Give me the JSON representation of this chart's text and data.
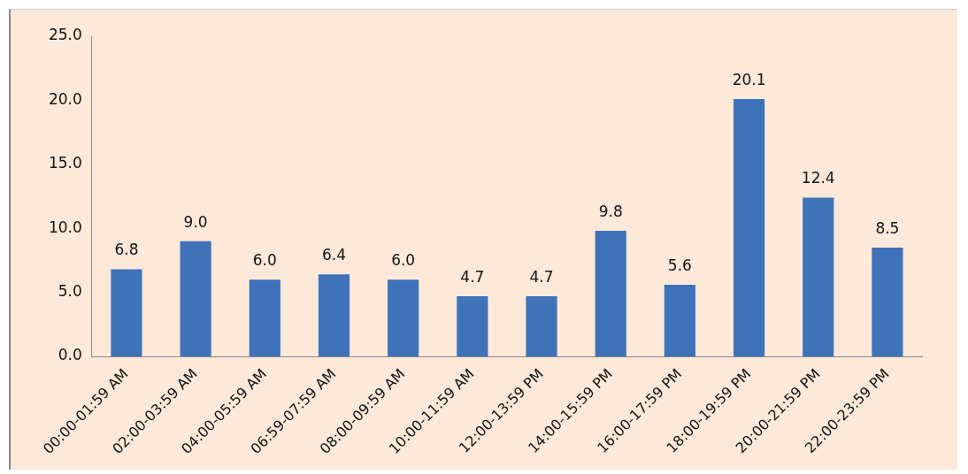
{
  "chart_data": {
    "type": "bar",
    "categories": [
      "00:00-01:59 AM",
      "02:00-03:59 AM",
      "04:00-05:59 AM",
      "06:59-07:59 AM",
      "08:00-09:59 AM",
      "10:00-11:59 AM",
      "12:00-13:59 PM",
      "14:00-15:59 PM",
      "16:00-17:59 PM",
      "18:00-19:59 PM",
      "20:00-21:59 PM",
      "22:00-23:59 PM"
    ],
    "values": [
      6.8,
      9.0,
      6.0,
      6.4,
      6.0,
      4.7,
      4.7,
      9.8,
      5.6,
      20.1,
      12.4,
      8.5
    ],
    "value_labels": [
      "6.8",
      "9.0",
      "6.0",
      "6.4",
      "6.0",
      "4.7",
      "4.7",
      "9.8",
      "5.6",
      "20.1",
      "12.4",
      "8.5"
    ],
    "color": "#3f72b8",
    "ylim": [
      0,
      25
    ],
    "yticks": [
      {
        "value": 0,
        "label": "0.0"
      },
      {
        "value": 5,
        "label": "5.0"
      },
      {
        "value": 10,
        "label": "10.0"
      },
      {
        "value": 15,
        "label": "15.0"
      },
      {
        "value": 20,
        "label": "20.0"
      },
      {
        "value": 25,
        "label": "25.0"
      }
    ],
    "grid": false,
    "legend": false
  }
}
